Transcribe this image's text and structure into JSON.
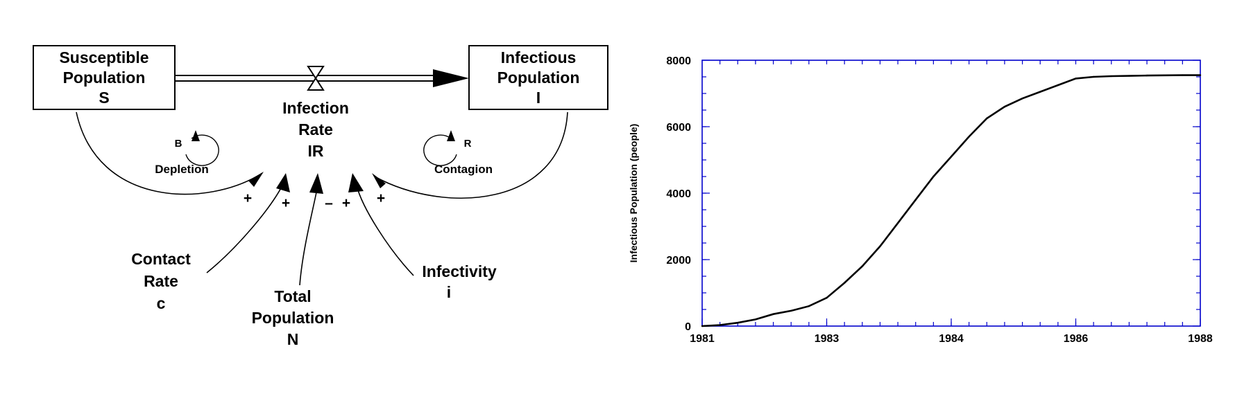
{
  "diagram": {
    "stocks": {
      "susceptible": [
        "Susceptible",
        "Population",
        "S"
      ],
      "infectious": [
        "Infectious",
        "Population",
        "I"
      ]
    },
    "flow": [
      "Infection",
      "Rate",
      "IR"
    ],
    "loops": {
      "balancing": {
        "symbol": "B",
        "name": "Depletion"
      },
      "reinforcing": {
        "symbol": "R",
        "name": "Contagion"
      }
    },
    "auxiliaries": {
      "contact_rate": [
        "Contact",
        "Rate",
        "c"
      ],
      "total_population": [
        "Total",
        "Population",
        "N"
      ],
      "infectivity": [
        "Infectivity",
        "i"
      ]
    },
    "polarities": {
      "from_susceptible": "+",
      "from_contact_rate": "+",
      "from_total_population": "–",
      "from_infectivity": "+",
      "from_infectious": "+"
    }
  },
  "chart_data": {
    "type": "line",
    "title": "",
    "xlabel": "",
    "ylabel": "Infectious Population (people)",
    "xlim": [
      1981,
      1988
    ],
    "ylim": [
      0,
      8000
    ],
    "x_tick_labels": [
      "1981",
      "1983",
      "1984",
      "1986",
      "1988"
    ],
    "x_tick_values": [
      1981,
      1982.75,
      1984.5,
      1986.25,
      1988
    ],
    "y_tick_labels": [
      "0",
      "2000",
      "4000",
      "6000",
      "8000"
    ],
    "y_tick_values": [
      0,
      2000,
      4000,
      6000,
      8000
    ],
    "grid": false,
    "series": [
      {
        "x": [
          1981.0,
          1981.25,
          1981.5,
          1981.75,
          1982.0,
          1982.25,
          1982.5,
          1982.75,
          1983.0,
          1983.25,
          1983.5,
          1983.75,
          1984.0,
          1984.25,
          1984.5,
          1984.75,
          1985.0,
          1985.25,
          1985.5,
          1985.75,
          1986.0,
          1986.25,
          1986.5,
          1986.75,
          1987.0,
          1987.25,
          1987.5,
          1987.75,
          1988.0
        ],
        "values": [
          0,
          30,
          100,
          200,
          360,
          460,
          600,
          850,
          1300,
          1800,
          2400,
          3100,
          3800,
          4500,
          5100,
          5700,
          6250,
          6600,
          6850,
          7050,
          7250,
          7450,
          7500,
          7520,
          7530,
          7540,
          7545,
          7550,
          7550
        ]
      }
    ]
  }
}
